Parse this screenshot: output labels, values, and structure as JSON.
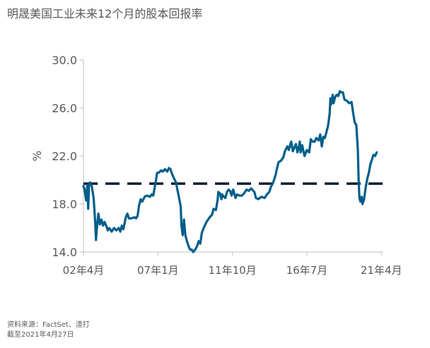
{
  "title": "明晟美国工业未来12个月的股本回报率",
  "footnotes": {
    "source": "资料来源：FactSet、渣打",
    "date": "截至2021年4月27日"
  },
  "colors": {
    "series": "#005e8a",
    "reference": "#0f1e2e",
    "axis": "#bfbfbf",
    "text": "#595959"
  },
  "chart_data": {
    "type": "line",
    "ylabel": "%",
    "ylim": [
      14,
      30
    ],
    "yticks": [
      "14.0",
      "18.0",
      "22.0",
      "26.0",
      "30.0"
    ],
    "xlim": [
      2002.25,
      2021.33
    ],
    "xticks": [
      {
        "x": 2002.25,
        "label": "02年4月"
      },
      {
        "x": 2007.0,
        "label": "07年1月"
      },
      {
        "x": 2011.75,
        "label": "11年10月"
      },
      {
        "x": 2016.5,
        "label": "16年7月"
      },
      {
        "x": 2021.25,
        "label": "21年4月"
      }
    ],
    "grid": false,
    "series": [
      {
        "values": [
          [
            2002.25,
            19.5
          ],
          [
            2002.32,
            19.2
          ],
          [
            2002.42,
            18.3
          ],
          [
            2002.5,
            19.6
          ],
          [
            2002.55,
            17.6
          ],
          [
            2002.6,
            19.5
          ],
          [
            2002.68,
            19.8
          ],
          [
            2002.78,
            19.5
          ],
          [
            2002.9,
            18.5
          ],
          [
            2003.0,
            16.5
          ],
          [
            2003.05,
            15.0
          ],
          [
            2003.12,
            16.2
          ],
          [
            2003.2,
            17.2
          ],
          [
            2003.3,
            16.3
          ],
          [
            2003.4,
            16.7
          ],
          [
            2003.5,
            16.2
          ],
          [
            2003.6,
            16.5
          ],
          [
            2003.7,
            16.2
          ],
          [
            2003.8,
            15.8
          ],
          [
            2003.9,
            16.0
          ],
          [
            2004.05,
            15.7
          ],
          [
            2004.2,
            16.0
          ],
          [
            2004.35,
            15.8
          ],
          [
            2004.5,
            16.0
          ],
          [
            2004.6,
            15.7
          ],
          [
            2004.7,
            16.2
          ],
          [
            2004.8,
            15.9
          ],
          [
            2004.95,
            16.9
          ],
          [
            2005.05,
            17.2
          ],
          [
            2005.15,
            16.8
          ],
          [
            2005.3,
            16.8
          ],
          [
            2005.5,
            16.9
          ],
          [
            2005.6,
            16.8
          ],
          [
            2005.7,
            17.0
          ],
          [
            2005.8,
            17.9
          ],
          [
            2005.9,
            18.4
          ],
          [
            2006.0,
            18.2
          ],
          [
            2006.15,
            18.6
          ],
          [
            2006.3,
            18.7
          ],
          [
            2006.5,
            18.6
          ],
          [
            2006.6,
            18.8
          ],
          [
            2006.7,
            18.7
          ],
          [
            2006.85,
            19.8
          ],
          [
            2006.95,
            20.6
          ],
          [
            2007.05,
            20.6
          ],
          [
            2007.2,
            20.8
          ],
          [
            2007.3,
            20.7
          ],
          [
            2007.45,
            20.9
          ],
          [
            2007.6,
            20.7
          ],
          [
            2007.7,
            21.0
          ],
          [
            2007.8,
            20.9
          ],
          [
            2007.9,
            20.5
          ],
          [
            2008.0,
            20.2
          ],
          [
            2008.15,
            19.8
          ],
          [
            2008.35,
            18.5
          ],
          [
            2008.45,
            17.8
          ],
          [
            2008.5,
            16.2
          ],
          [
            2008.58,
            15.4
          ],
          [
            2008.66,
            16.7
          ],
          [
            2008.75,
            15.4
          ],
          [
            2008.85,
            14.9
          ],
          [
            2008.95,
            14.5
          ],
          [
            2009.05,
            14.2
          ],
          [
            2009.15,
            14.2
          ],
          [
            2009.25,
            14.0
          ],
          [
            2009.38,
            14.2
          ],
          [
            2009.5,
            14.5
          ],
          [
            2009.6,
            14.9
          ],
          [
            2009.7,
            14.7
          ],
          [
            2009.8,
            15.6
          ],
          [
            2009.95,
            16.1
          ],
          [
            2010.1,
            16.5
          ],
          [
            2010.3,
            16.9
          ],
          [
            2010.45,
            17.1
          ],
          [
            2010.55,
            17.6
          ],
          [
            2010.7,
            17.5
          ],
          [
            2010.8,
            18.3
          ],
          [
            2010.85,
            19.0
          ],
          [
            2010.95,
            18.9
          ],
          [
            2011.05,
            18.4
          ],
          [
            2011.1,
            18.8
          ],
          [
            2011.2,
            18.6
          ],
          [
            2011.3,
            18.5
          ],
          [
            2011.4,
            19.0
          ],
          [
            2011.5,
            19.2
          ],
          [
            2011.6,
            19.1
          ],
          [
            2011.7,
            18.7
          ],
          [
            2011.8,
            19.2
          ],
          [
            2011.95,
            18.5
          ],
          [
            2012.05,
            18.8
          ],
          [
            2012.2,
            18.7
          ],
          [
            2012.35,
            18.7
          ],
          [
            2012.5,
            18.9
          ],
          [
            2012.65,
            19.2
          ],
          [
            2012.8,
            19.1
          ],
          [
            2012.95,
            19.3
          ],
          [
            2013.15,
            19.0
          ],
          [
            2013.25,
            18.5
          ],
          [
            2013.4,
            18.4
          ],
          [
            2013.6,
            18.6
          ],
          [
            2013.8,
            18.5
          ],
          [
            2013.95,
            18.8
          ],
          [
            2014.1,
            19.0
          ],
          [
            2014.2,
            19.4
          ],
          [
            2014.35,
            19.8
          ],
          [
            2014.5,
            20.4
          ],
          [
            2014.6,
            21.0
          ],
          [
            2014.7,
            21.5
          ],
          [
            2014.85,
            21.6
          ],
          [
            2015.0,
            21.9
          ],
          [
            2015.1,
            22.4
          ],
          [
            2015.25,
            22.8
          ],
          [
            2015.35,
            22.5
          ],
          [
            2015.45,
            23.0
          ],
          [
            2015.5,
            23.2
          ],
          [
            2015.6,
            22.4
          ],
          [
            2015.7,
            22.7
          ],
          [
            2015.8,
            23.0
          ],
          [
            2015.9,
            22.3
          ],
          [
            2016.0,
            22.8
          ],
          [
            2016.05,
            23.2
          ],
          [
            2016.1,
            22.3
          ],
          [
            2016.2,
            22.9
          ],
          [
            2016.35,
            22.0
          ],
          [
            2016.5,
            22.5
          ],
          [
            2016.65,
            22.3
          ],
          [
            2016.75,
            23.4
          ],
          [
            2016.85,
            23.2
          ],
          [
            2017.0,
            23.2
          ],
          [
            2017.1,
            23.5
          ],
          [
            2017.25,
            23.3
          ],
          [
            2017.35,
            23.8
          ],
          [
            2017.45,
            22.8
          ],
          [
            2017.55,
            23.6
          ],
          [
            2017.65,
            23.5
          ],
          [
            2017.75,
            24.0
          ],
          [
            2017.85,
            24.5
          ],
          [
            2017.95,
            25.5
          ],
          [
            2018.0,
            26.8
          ],
          [
            2018.05,
            26.3
          ],
          [
            2018.15,
            27.1
          ],
          [
            2018.2,
            26.4
          ],
          [
            2018.3,
            26.9
          ],
          [
            2018.4,
            27.1
          ],
          [
            2018.5,
            27.0
          ],
          [
            2018.6,
            27.4
          ],
          [
            2018.7,
            27.3
          ],
          [
            2018.8,
            27.3
          ],
          [
            2018.9,
            26.7
          ],
          [
            2019.05,
            26.6
          ],
          [
            2019.2,
            26.4
          ],
          [
            2019.35,
            26.5
          ],
          [
            2019.45,
            25.6
          ],
          [
            2019.55,
            24.8
          ],
          [
            2019.65,
            24.6
          ],
          [
            2019.75,
            22.5
          ],
          [
            2019.8,
            20.0
          ],
          [
            2019.85,
            18.5
          ],
          [
            2019.92,
            18.2
          ],
          [
            2020.0,
            18.6
          ],
          [
            2020.05,
            18.0
          ],
          [
            2020.15,
            18.4
          ],
          [
            2020.25,
            19.4
          ],
          [
            2020.35,
            20.1
          ],
          [
            2020.45,
            20.6
          ],
          [
            2020.55,
            21.3
          ],
          [
            2020.65,
            21.7
          ],
          [
            2020.75,
            22.1
          ],
          [
            2020.85,
            22.0
          ],
          [
            2020.95,
            22.3
          ]
        ]
      }
    ],
    "reference_line": {
      "y": 19.7,
      "style": "dashed"
    }
  }
}
